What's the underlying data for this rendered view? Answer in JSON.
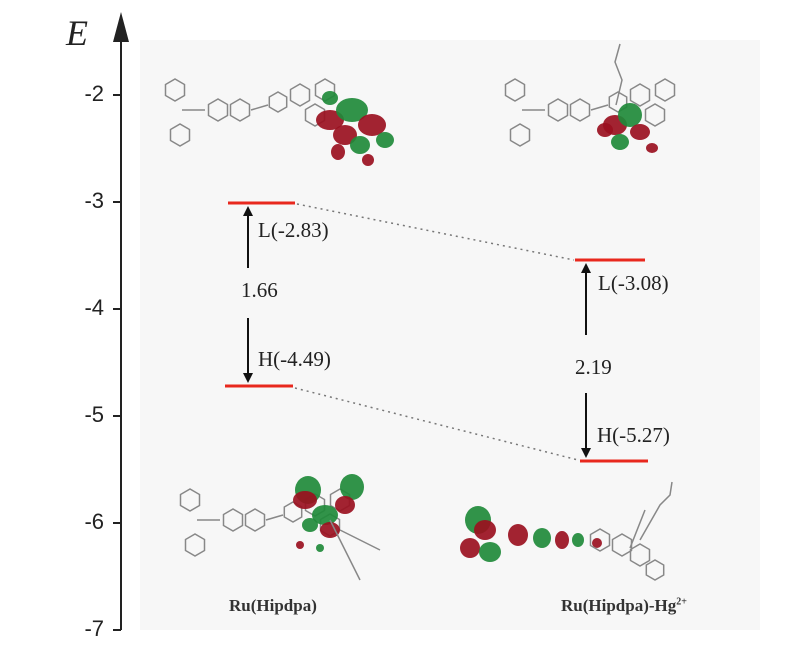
{
  "chart_data": {
    "type": "energy-level-diagram",
    "ylabel": "E",
    "yticks": [
      "-2",
      "-3",
      "-4",
      "-5",
      "-6",
      "-7"
    ],
    "ylim": [
      -7,
      -1.5
    ],
    "colors": {
      "level": "#e8281e",
      "orbital_positive": "#1f8a3a",
      "orbital_negative": "#9a1020",
      "axis": "#222222"
    },
    "compounds": [
      {
        "name": "Ru(Hipdpa)",
        "lumo_label": "L(-2.83)",
        "lumo": -2.83,
        "homo_label": "H(-4.49)",
        "homo": -4.49,
        "gap": "1.66"
      },
      {
        "name": "Ru(Hipdpa)-Hg",
        "name_sup": "2+",
        "lumo_label": "L(-3.08)",
        "lumo": -3.08,
        "homo_label": "H(-5.27)",
        "homo": -5.27,
        "gap": "2.19"
      }
    ]
  }
}
